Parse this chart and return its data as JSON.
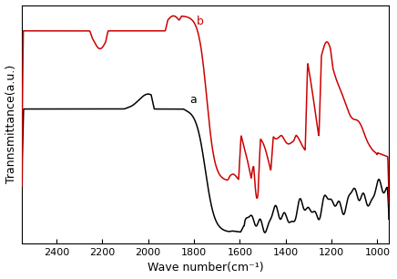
{
  "title": "",
  "xlabel": "Wave number(cm⁻¹)",
  "ylabel": "Trannsmittance(a.u.)",
  "xlim": [
    950,
    2550
  ],
  "xticks": [
    2400,
    2200,
    2000,
    1800,
    1600,
    1400,
    1200,
    1000
  ],
  "background_color": "#ffffff",
  "curve_a_color": "#000000",
  "curve_b_color": "#cc0000",
  "label_a": "a",
  "label_b": "b"
}
